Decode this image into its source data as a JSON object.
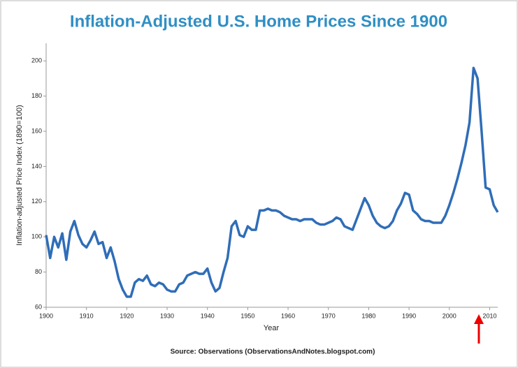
{
  "chart_data": {
    "type": "line",
    "title": "Inflation-Adjusted U.S. Home Prices Since 1900",
    "xlabel": "Year",
    "ylabel": "Inflation-adjusted Price Index (1890=100)",
    "source": "Source: Observations  (ObservationsAndNotes.blogspot.com)",
    "x": [
      1900,
      1901,
      1902,
      1903,
      1904,
      1905,
      1906,
      1907,
      1908,
      1909,
      1910,
      1911,
      1912,
      1913,
      1914,
      1915,
      1916,
      1917,
      1918,
      1919,
      1920,
      1921,
      1922,
      1923,
      1924,
      1925,
      1926,
      1927,
      1928,
      1929,
      1930,
      1931,
      1932,
      1933,
      1934,
      1935,
      1936,
      1937,
      1938,
      1939,
      1940,
      1941,
      1942,
      1943,
      1944,
      1945,
      1946,
      1947,
      1948,
      1949,
      1950,
      1951,
      1952,
      1953,
      1954,
      1955,
      1956,
      1957,
      1958,
      1959,
      1960,
      1961,
      1962,
      1963,
      1964,
      1965,
      1966,
      1967,
      1968,
      1969,
      1970,
      1971,
      1972,
      1973,
      1974,
      1975,
      1976,
      1977,
      1978,
      1979,
      1980,
      1981,
      1982,
      1983,
      1984,
      1985,
      1986,
      1987,
      1988,
      1989,
      1990,
      1991,
      1992,
      1993,
      1994,
      1995,
      1996,
      1997,
      1998,
      1999,
      2000,
      2001,
      2002,
      2003,
      2004,
      2005,
      2006,
      2007,
      2008,
      2009,
      2010,
      2011,
      2012
    ],
    "series": [
      {
        "name": "Price Index",
        "color": "#2f6db8",
        "values": [
          101,
          88,
          100,
          94,
          102,
          87,
          103,
          109,
          101,
          96,
          94,
          98,
          103,
          96,
          97,
          88,
          94,
          86,
          76,
          70,
          66,
          66,
          74,
          76,
          75,
          78,
          73,
          72,
          74,
          73,
          70,
          69,
          69,
          73,
          74,
          78,
          79,
          80,
          79,
          79,
          82,
          74,
          69,
          71,
          80,
          88,
          106,
          109,
          101,
          100,
          106,
          104,
          104,
          115,
          115,
          116,
          115,
          115,
          114,
          112,
          111,
          110,
          110,
          109,
          110,
          110,
          110,
          108,
          107,
          107,
          108,
          109,
          111,
          110,
          106,
          105,
          104,
          110,
          116,
          122,
          118,
          112,
          108,
          106,
          105,
          106,
          109,
          115,
          119,
          125,
          124,
          115,
          113,
          110,
          109,
          109,
          108,
          108,
          108,
          112,
          118,
          125,
          133,
          142,
          152,
          165,
          196,
          190,
          160,
          128,
          127,
          118,
          114
        ]
      }
    ],
    "xlim": [
      1900,
      2012
    ],
    "xticks": [
      1900,
      1910,
      1920,
      1930,
      1940,
      1950,
      1960,
      1970,
      1980,
      1990,
      2000,
      2010
    ],
    "ylim": [
      60,
      210
    ],
    "yticks": [
      60,
      80,
      100,
      120,
      140,
      160,
      180,
      200
    ],
    "grid": false,
    "legend": false
  }
}
